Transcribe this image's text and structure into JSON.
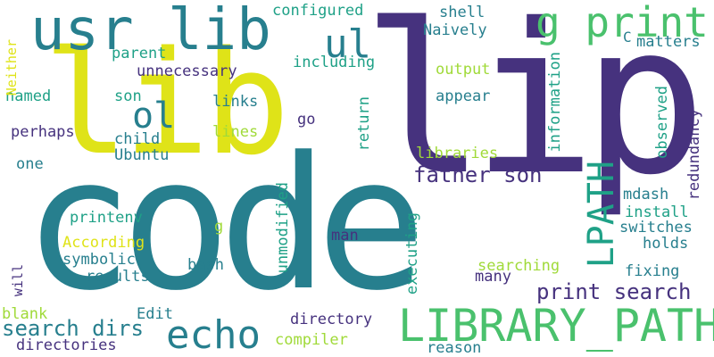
{
  "image_type": "word cloud",
  "palette": {
    "dark_purple": "#46327e",
    "blue": "#365c8d",
    "teal": "#277f8e",
    "green": "#1fa187",
    "light_green": "#4ac16d",
    "yellow_green": "#a0da39",
    "yellow": "#dfe318"
  },
  "words": [
    {
      "id": "code",
      "text": "code"
    },
    {
      "id": "lib",
      "text": "lib"
    },
    {
      "id": "lip",
      "text": "lip"
    },
    {
      "id": "usr-lib",
      "text": "usr lib"
    },
    {
      "id": "g-print",
      "text": "g print"
    },
    {
      "id": "ul",
      "text": "ul"
    },
    {
      "id": "ol",
      "text": "ol"
    },
    {
      "id": "echo",
      "text": "echo"
    },
    {
      "id": "library-path",
      "text": "LIBRARY_PATH"
    },
    {
      "id": "lpath",
      "text": "LPATH"
    },
    {
      "id": "father-son",
      "text": "father son"
    },
    {
      "id": "print-search",
      "text": "print search"
    },
    {
      "id": "search-dirs",
      "text": "search dirs"
    },
    {
      "id": "configured",
      "text": "configured"
    },
    {
      "id": "shell",
      "text": "shell"
    },
    {
      "id": "naively",
      "text": "Naively"
    },
    {
      "id": "c",
      "text": "C"
    },
    {
      "id": "matters",
      "text": "matters"
    },
    {
      "id": "parent",
      "text": "parent"
    },
    {
      "id": "including",
      "text": "including"
    },
    {
      "id": "unnecessary",
      "text": "unnecessary"
    },
    {
      "id": "neither",
      "text": "Neither"
    },
    {
      "id": "named",
      "text": "named"
    },
    {
      "id": "son",
      "text": "son"
    },
    {
      "id": "links",
      "text": "links"
    },
    {
      "id": "output",
      "text": "output"
    },
    {
      "id": "appear",
      "text": "appear"
    },
    {
      "id": "information",
      "text": "information"
    },
    {
      "id": "perhaps",
      "text": "perhaps"
    },
    {
      "id": "go",
      "text": "go"
    },
    {
      "id": "lines",
      "text": "lines"
    },
    {
      "id": "child",
      "text": "child"
    },
    {
      "id": "return",
      "text": "return"
    },
    {
      "id": "ubuntu",
      "text": "Ubuntu"
    },
    {
      "id": "one",
      "text": "one"
    },
    {
      "id": "libraries",
      "text": "libraries"
    },
    {
      "id": "observed",
      "text": "observed"
    },
    {
      "id": "redundancy",
      "text": "redundancy"
    },
    {
      "id": "mdash",
      "text": "mdash"
    },
    {
      "id": "unmodified",
      "text": "unmodified"
    },
    {
      "id": "install",
      "text": "install"
    },
    {
      "id": "printenv",
      "text": "printenv"
    },
    {
      "id": "g",
      "text": "g"
    },
    {
      "id": "switches",
      "text": "switches"
    },
    {
      "id": "executing",
      "text": "executing"
    },
    {
      "id": "according",
      "text": "According"
    },
    {
      "id": "man",
      "text": "man"
    },
    {
      "id": "holds",
      "text": "holds"
    },
    {
      "id": "symbolic",
      "text": "symbolic"
    },
    {
      "id": "bash",
      "text": "bash"
    },
    {
      "id": "searching",
      "text": "searching"
    },
    {
      "id": "fixing",
      "text": "fixing"
    },
    {
      "id": "will",
      "text": "will"
    },
    {
      "id": "results",
      "text": "results"
    },
    {
      "id": "many",
      "text": "many"
    },
    {
      "id": "blank",
      "text": "blank"
    },
    {
      "id": "edit",
      "text": "Edit"
    },
    {
      "id": "directory",
      "text": "directory"
    },
    {
      "id": "compiler",
      "text": "compiler"
    },
    {
      "id": "directories",
      "text": "directories"
    },
    {
      "id": "reason",
      "text": "reason"
    }
  ]
}
